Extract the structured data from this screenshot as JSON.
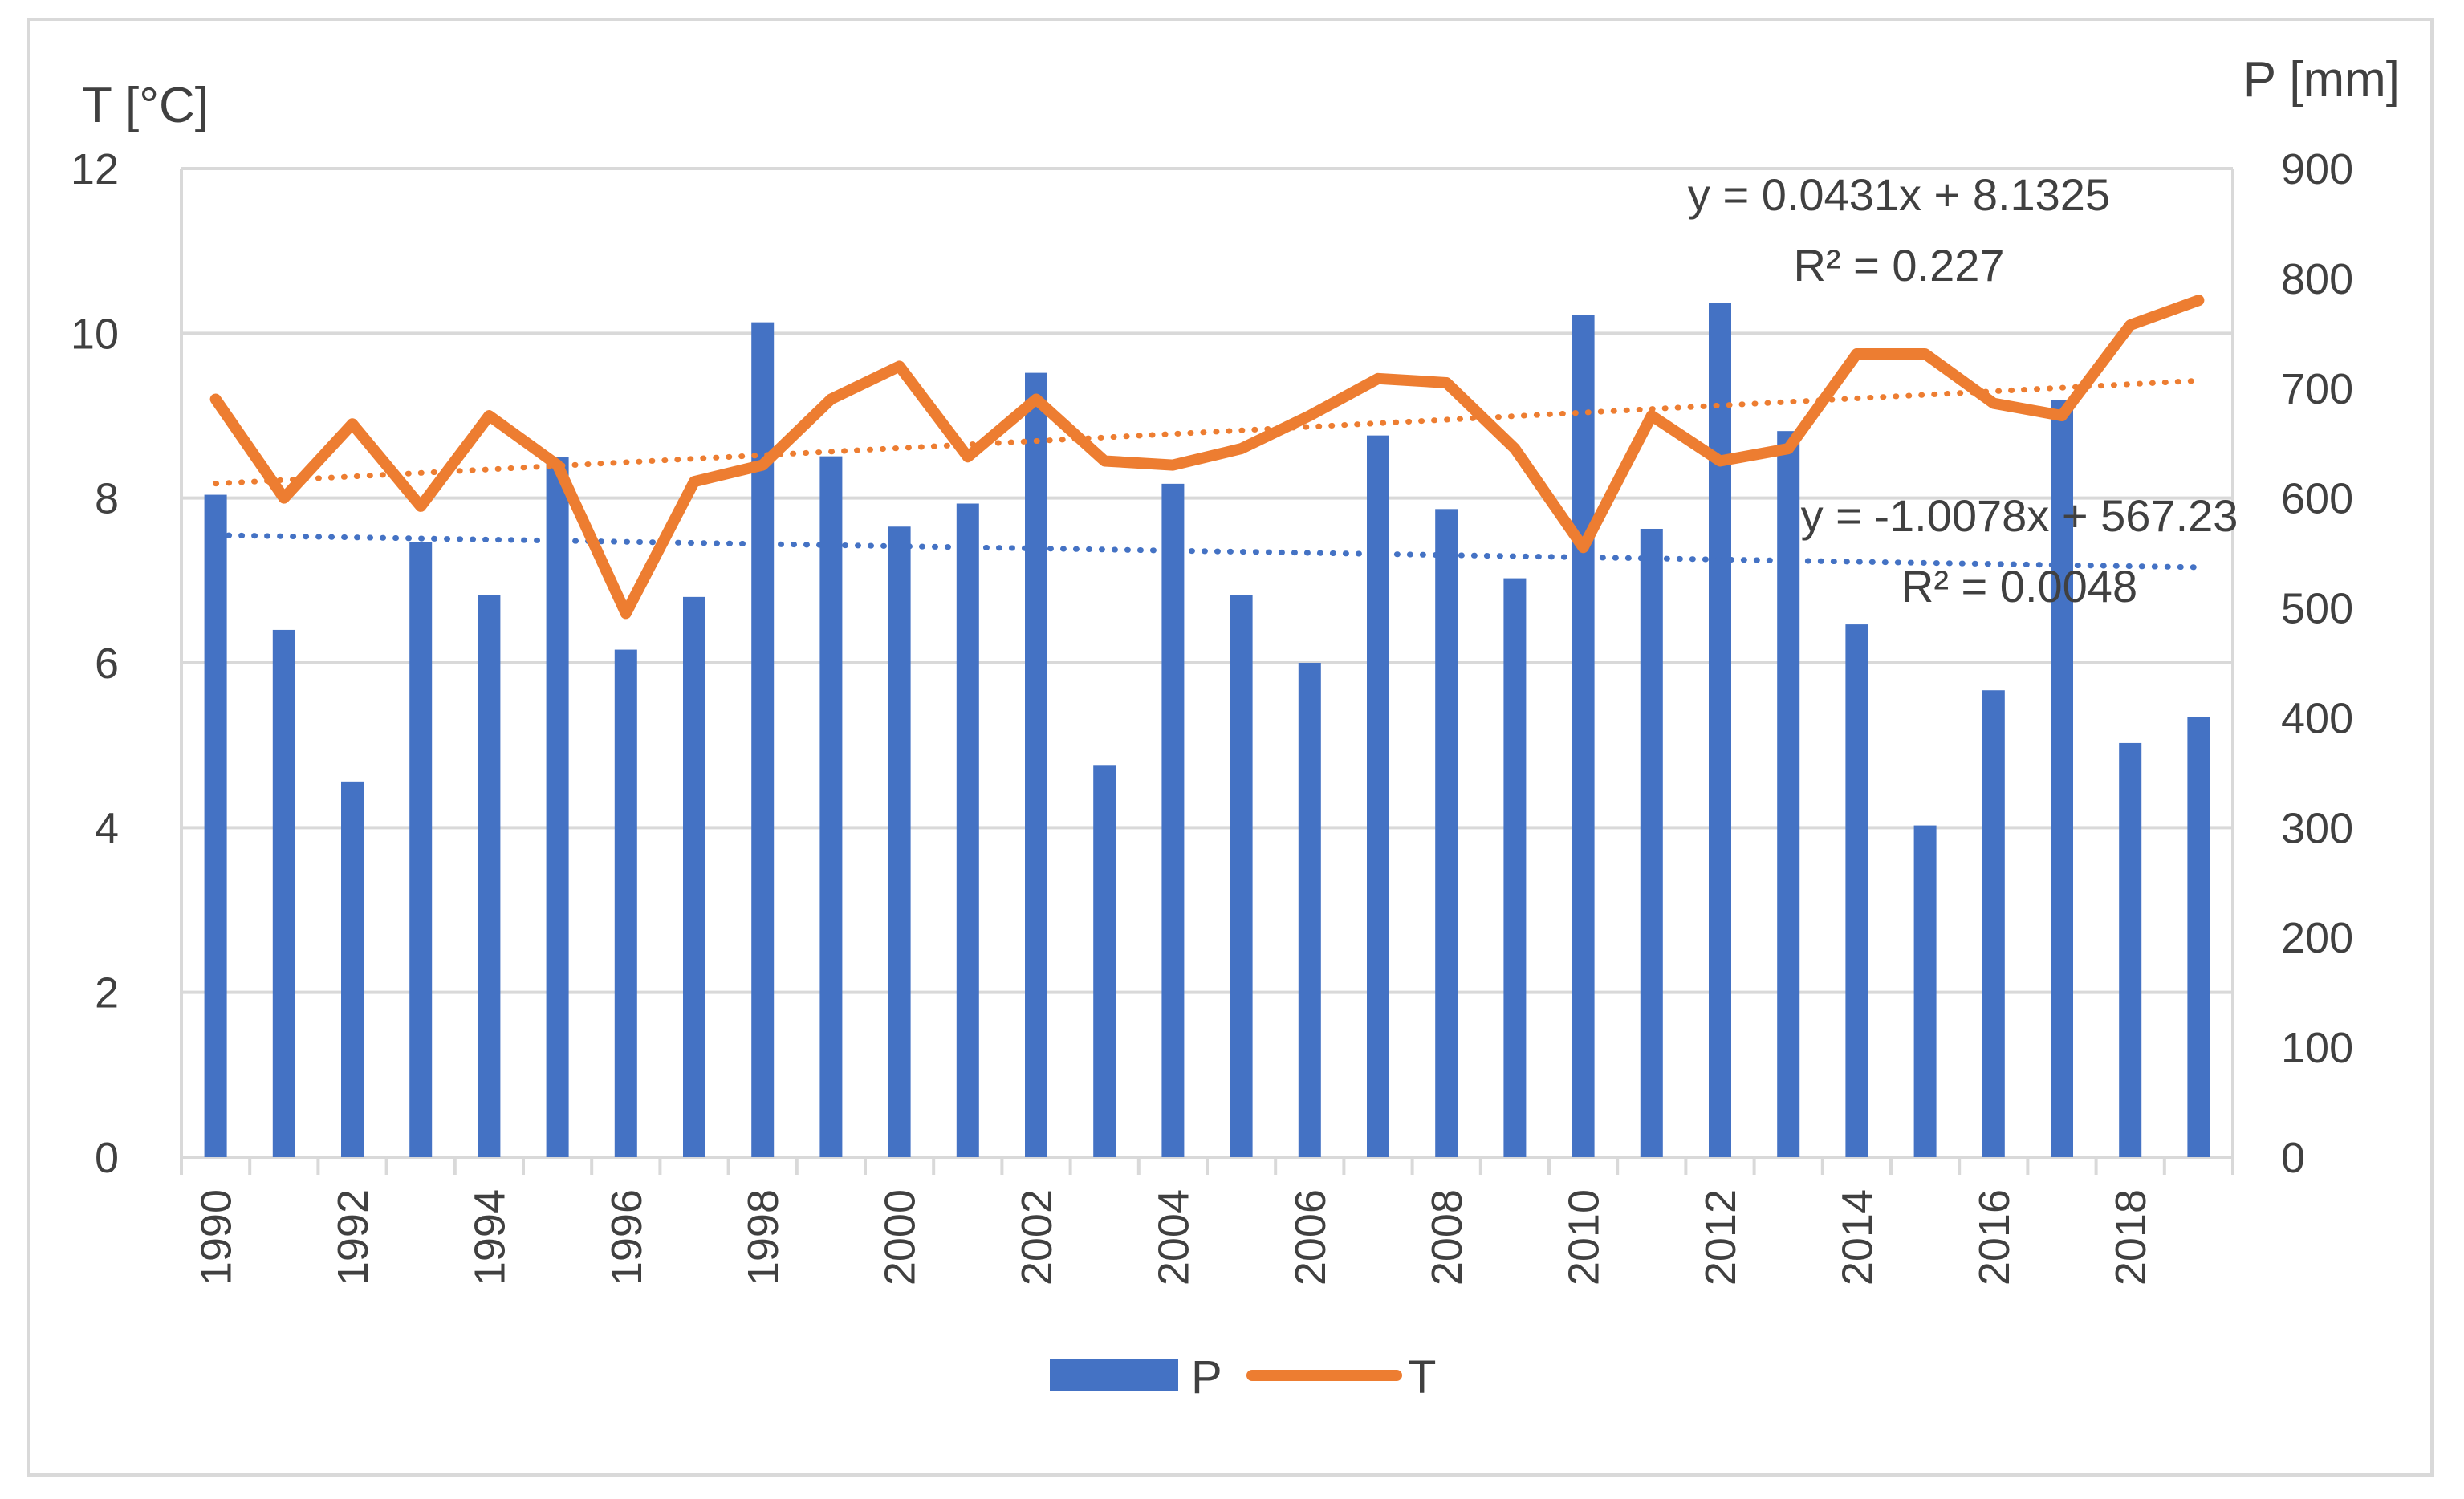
{
  "chart_data": {
    "type": "bar+line",
    "left_axis": {
      "title": "T [°C]",
      "range": [
        0,
        12
      ],
      "ticks": [
        0,
        2,
        4,
        6,
        8,
        10,
        12
      ]
    },
    "right_axis": {
      "title": "P [mm]",
      "range": [
        0,
        900
      ],
      "ticks": [
        0,
        100,
        200,
        300,
        400,
        500,
        600,
        700,
        800,
        900
      ]
    },
    "years": [
      1990,
      1991,
      1992,
      1993,
      1994,
      1995,
      1996,
      1997,
      1998,
      1999,
      2000,
      2001,
      2002,
      2003,
      2004,
      2005,
      2006,
      2007,
      2008,
      2009,
      2010,
      2011,
      2012,
      2013,
      2014,
      2015,
      2016,
      2017,
      2018,
      2019
    ],
    "x_tick_labels": [
      "1990",
      "1992",
      "1994",
      "1996",
      "1998",
      "2000",
      "2002",
      "2004",
      "2006",
      "2008",
      "2010",
      "2012",
      "2014",
      "2016",
      "2018"
    ],
    "series": [
      {
        "name": "P",
        "type": "bar",
        "axis": "right",
        "color": "#4472C4",
        "values": [
          603,
          480,
          342,
          560,
          512,
          637,
          462,
          510,
          760,
          638,
          574,
          595,
          714,
          357,
          613,
          512,
          450,
          657,
          590,
          527,
          767,
          572,
          778,
          661,
          485,
          302,
          425,
          689,
          377,
          401
        ]
      },
      {
        "name": "T",
        "type": "line",
        "axis": "left",
        "color": "#ED7D31",
        "values": [
          9.2,
          8.0,
          8.9,
          7.9,
          9.0,
          8.4,
          6.6,
          8.2,
          8.4,
          9.2,
          9.6,
          8.5,
          9.2,
          8.45,
          8.4,
          8.6,
          9.0,
          9.45,
          9.4,
          8.6,
          7.4,
          9.0,
          8.45,
          8.6,
          9.75,
          9.75,
          9.15,
          9.0,
          10.1,
          10.4
        ]
      }
    ],
    "trendlines": [
      {
        "series": "T",
        "axis": "left",
        "color": "#ED7D31",
        "style": "dotted",
        "slope": 0.0431,
        "intercept": 8.1325,
        "equation": "y = 0.0431x + 8.1325",
        "r2": "R² = 0.227"
      },
      {
        "series": "P",
        "axis": "right",
        "color": "#4472C4",
        "style": "dotted",
        "slope": -1.0078,
        "intercept": 567.23,
        "equation": "y = -1.0078x + 567.23",
        "r2": "R² = 0.0048"
      }
    ],
    "legend": {
      "placement": "bottom",
      "items": [
        {
          "label": "P",
          "color": "#4472C4"
        },
        {
          "label": "T",
          "color": "#ED7D31"
        }
      ]
    },
    "grid": true
  }
}
